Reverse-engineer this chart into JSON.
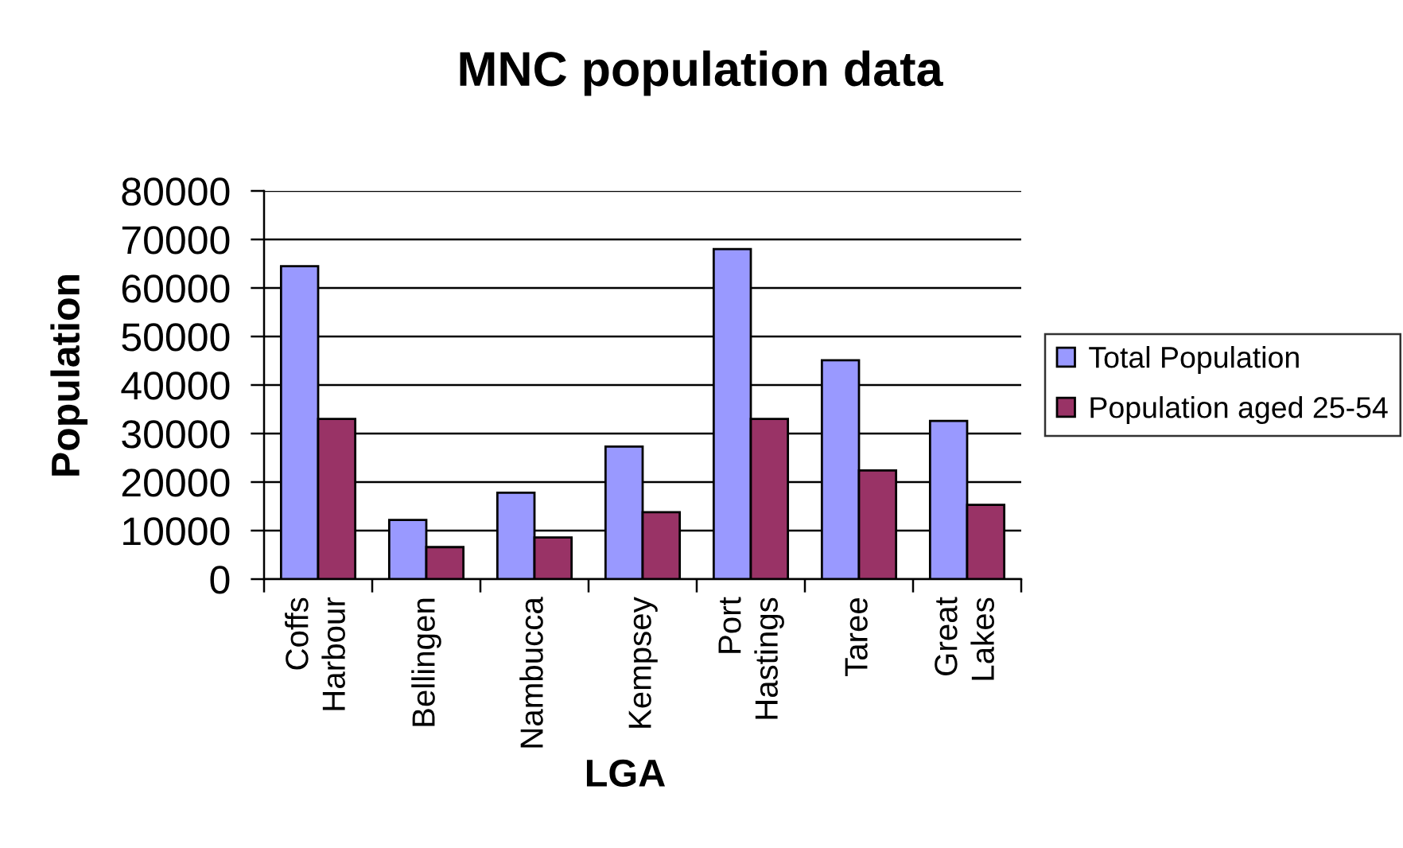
{
  "chart_data": {
    "type": "bar",
    "title": "MNC population data",
    "xlabel": "LGA",
    "ylabel": "Population",
    "categories": [
      "Coffs Harbour",
      "Bellingen",
      "Nambucca",
      "Kempsey",
      "Port Hastings",
      "Taree",
      "Great Lakes"
    ],
    "series": [
      {
        "name": "Total Population",
        "color": "#9999ff",
        "values": [
          64500,
          12200,
          17800,
          27300,
          68000,
          45100,
          32600
        ]
      },
      {
        "name": "Population aged 25-54",
        "color": "#993366",
        "values": [
          33000,
          6600,
          8600,
          13800,
          33000,
          22400,
          15300
        ]
      }
    ],
    "ylim": [
      0,
      80000
    ],
    "yticks": [
      0,
      10000,
      20000,
      30000,
      40000,
      50000,
      60000,
      70000,
      80000
    ],
    "grid": "y",
    "legend": "right"
  }
}
